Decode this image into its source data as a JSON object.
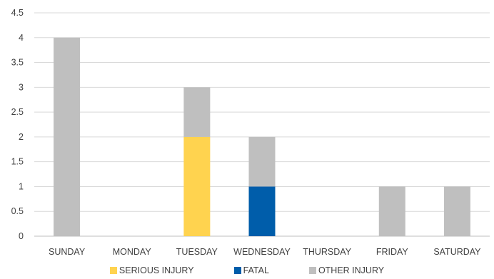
{
  "chart_data": {
    "type": "bar",
    "stacked": true,
    "title": "",
    "xlabel": "",
    "ylabel": "",
    "ylim": [
      0,
      4.5
    ],
    "yticks": [
      "0",
      "0.5",
      "1",
      "1.5",
      "2",
      "2.5",
      "3",
      "3.5",
      "4",
      "4.5"
    ],
    "grid": true,
    "legend_position": "bottom",
    "categories": [
      "SUNDAY",
      "MONDAY",
      "TUESDAY",
      "WEDNESDAY",
      "THURSDAY",
      "FRIDAY",
      "SATURDAY"
    ],
    "series": [
      {
        "name": "SERIOUS INJURY",
        "color": "#FFD34F",
        "values": [
          0,
          0,
          2,
          0,
          0,
          0,
          0
        ]
      },
      {
        "name": "FATAL",
        "color": "#005DAA",
        "values": [
          0,
          0,
          0,
          1,
          0,
          0,
          0
        ]
      },
      {
        "name": "OTHER INJURY",
        "color": "#BFBFBF",
        "values": [
          4,
          0,
          1,
          1,
          0,
          1,
          1
        ]
      }
    ]
  }
}
